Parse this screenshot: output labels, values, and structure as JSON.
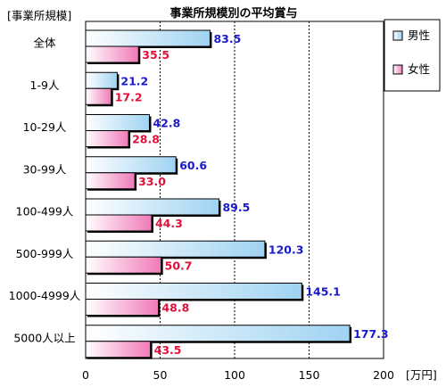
{
  "chart_data": {
    "type": "bar",
    "orientation": "horizontal",
    "title": "事業所規模別の平均賞与",
    "category_header": "[事業所規模]",
    "xlabel": "[万円]",
    "xlim": [
      0,
      200
    ],
    "xticks": [
      0,
      50,
      100,
      150,
      200
    ],
    "grid": true,
    "legend_position": "top-right",
    "categories": [
      "全体",
      "1-9人",
      "10-29人",
      "30-99人",
      "100-499人",
      "500-999人",
      "1000-4999人",
      "5000人以上"
    ],
    "series": [
      {
        "name": "男性",
        "color": "#1a1acc",
        "values": [
          83.5,
          21.2,
          42.8,
          60.6,
          89.5,
          120.3,
          145.1,
          177.3
        ]
      },
      {
        "name": "女性",
        "color": "#e0103a",
        "values": [
          35.5,
          17.2,
          28.8,
          33.0,
          44.3,
          50.7,
          48.8,
          43.5
        ]
      }
    ],
    "value_labels": [
      [
        "83.5",
        "21.2",
        "42.8",
        "60.6",
        "89.5",
        "120.3",
        "145.1",
        "177.3"
      ],
      [
        "35.5",
        "17.2",
        "28.8",
        "33.0",
        "44.3",
        "50.7",
        "48.8",
        "43.5"
      ]
    ]
  }
}
